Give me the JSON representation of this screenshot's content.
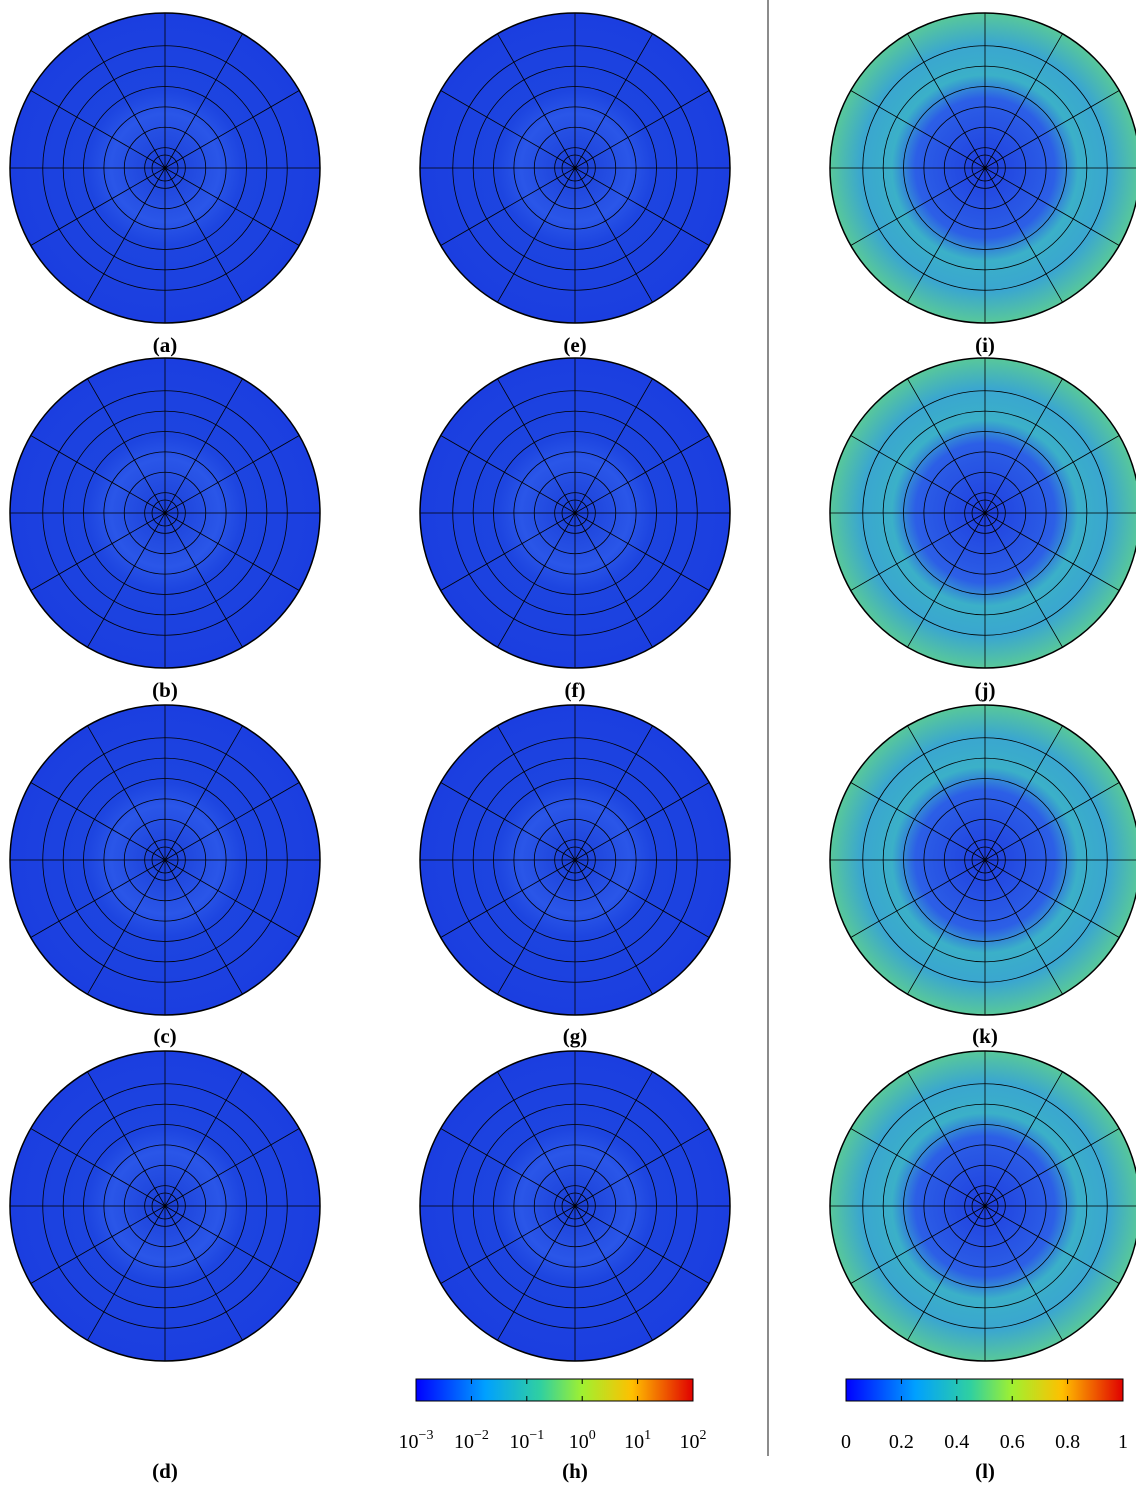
{
  "panels": [
    {
      "label": "(a)"
    },
    {
      "label": "(b)"
    },
    {
      "label": "(c)"
    },
    {
      "label": "(d)"
    },
    {
      "label": "(e)"
    },
    {
      "label": "(f)"
    },
    {
      "label": "(g)"
    },
    {
      "label": "(h)"
    },
    {
      "label": "(i)"
    },
    {
      "label": "(j)"
    },
    {
      "label": "(k)"
    },
    {
      "label": "(l)"
    }
  ],
  "colorbars": [
    {
      "scale": "log",
      "lim": [
        0.001,
        100
      ],
      "ticks": [
        {
          "value": 0.001,
          "base": "10",
          "exponent": "−3"
        },
        {
          "value": 0.01,
          "base": "10",
          "exponent": "−2"
        },
        {
          "value": 0.1,
          "base": "10",
          "exponent": "−1"
        },
        {
          "value": 1,
          "base": "10",
          "exponent": "0"
        },
        {
          "value": 10,
          "base": "10",
          "exponent": "1"
        },
        {
          "value": 100,
          "base": "10",
          "exponent": "2"
        }
      ]
    },
    {
      "scale": "linear",
      "lim": [
        0,
        1
      ],
      "ticks": [
        0,
        0.2,
        0.4,
        0.6,
        0.8,
        1
      ]
    }
  ]
}
